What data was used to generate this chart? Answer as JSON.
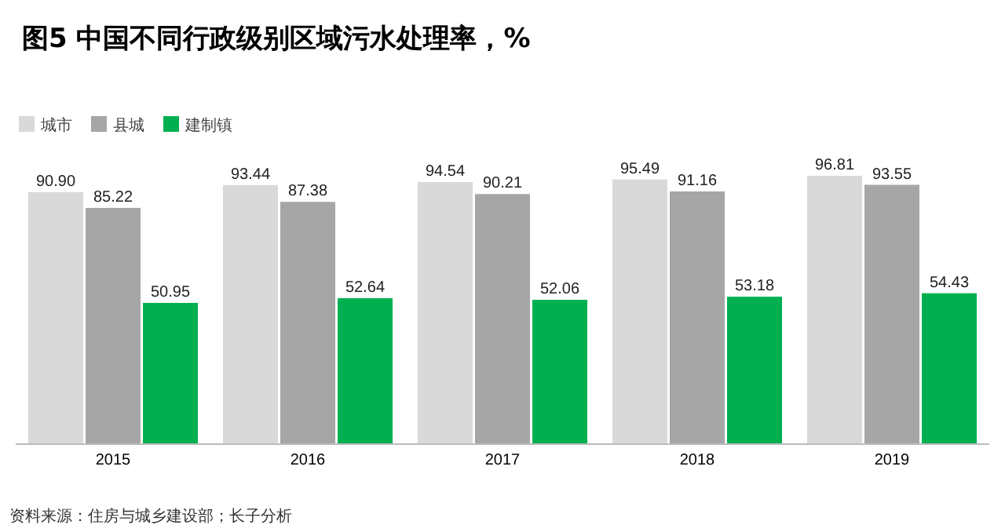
{
  "chart_data": {
    "type": "bar",
    "title": "图5 中国不同行政级别区域污水处理率，%",
    "categories": [
      "2015",
      "2016",
      "2017",
      "2018",
      "2019"
    ],
    "series": [
      {
        "name": "城市",
        "color": "#d9d9d9",
        "values": [
          90.9,
          93.44,
          94.54,
          95.49,
          96.81
        ],
        "value_labels": [
          "90.90",
          "93.44",
          "94.54",
          "95.49",
          "96.81"
        ]
      },
      {
        "name": "县城",
        "color": "#a6a6a6",
        "values": [
          85.22,
          87.38,
          90.21,
          91.16,
          93.55
        ],
        "value_labels": [
          "85.22",
          "87.38",
          "90.21",
          "91.16",
          "93.55"
        ]
      },
      {
        "name": "建制镇",
        "color": "#00b050",
        "values": [
          50.95,
          52.64,
          52.06,
          53.18,
          54.43
        ],
        "value_labels": [
          "50.95",
          "52.64",
          "52.06",
          "53.18",
          "54.43"
        ]
      }
    ],
    "legend": "top left",
    "annotations": [
      "资料来源：住房与城乡建设部；长子分析"
    ]
  }
}
